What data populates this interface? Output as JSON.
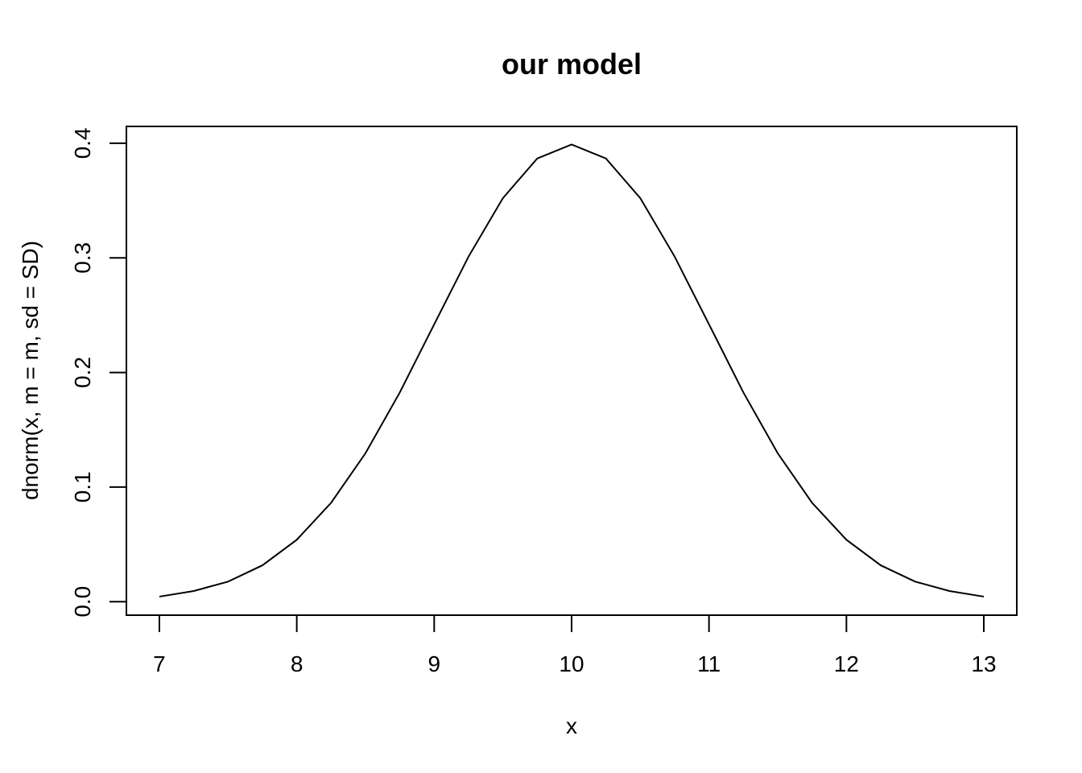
{
  "chart_data": {
    "type": "line",
    "title": "our model",
    "xlabel": "x",
    "ylabel": "dnorm(x, m = m, sd = SD)",
    "xlim": [
      6.76,
      13.24
    ],
    "ylim": [
      -0.0118,
      0.4147
    ],
    "x_ticks": [
      7,
      8,
      9,
      10,
      11,
      12,
      13
    ],
    "y_ticks": [
      0.0,
      0.1,
      0.2,
      0.3,
      0.4
    ],
    "x_tick_labels": [
      "7",
      "8",
      "9",
      "10",
      "11",
      "12",
      "13"
    ],
    "y_tick_labels": [
      "0.0",
      "0.1",
      "0.2",
      "0.3",
      "0.4"
    ],
    "grid": false,
    "line_color": "#000000",
    "series": [
      {
        "x": [
          7.0,
          7.25,
          7.5,
          7.75,
          8.0,
          8.25,
          8.5,
          8.75,
          9.0,
          9.25,
          9.5,
          9.75,
          10.0,
          10.25,
          10.5,
          10.75,
          11.0,
          11.25,
          11.5,
          11.75,
          12.0,
          12.25,
          12.5,
          12.75,
          13.0
        ],
        "values": [
          0.0044,
          0.0093,
          0.0175,
          0.0317,
          0.054,
          0.0863,
          0.1295,
          0.1826,
          0.242,
          0.3011,
          0.3521,
          0.3867,
          0.3989,
          0.3867,
          0.3521,
          0.3011,
          0.242,
          0.1826,
          0.1295,
          0.0863,
          0.054,
          0.0317,
          0.0175,
          0.0093,
          0.0044
        ]
      }
    ]
  }
}
